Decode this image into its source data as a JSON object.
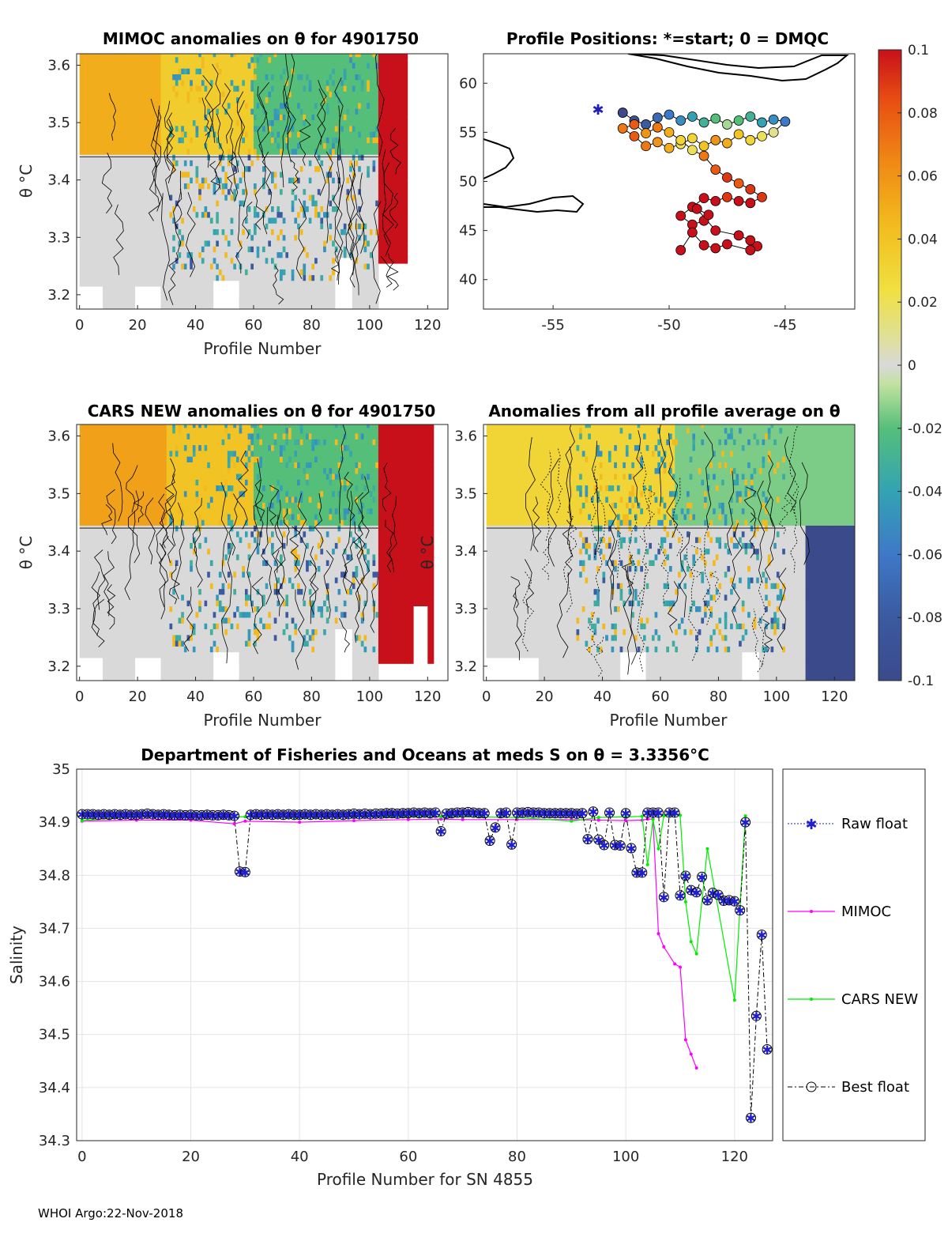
{
  "footer": "WHOI Argo:22-Nov-2018",
  "colorbar": {
    "ticks": [
      "0.1",
      "0.08",
      "0.06",
      "0.04",
      "0.02",
      "0",
      "-0.02",
      "-0.04",
      "-0.06",
      "-0.08",
      "-0.1"
    ],
    "range": [
      -0.1,
      0.1
    ]
  },
  "chart_data": [
    {
      "type": "heatmap",
      "title": "MIMOC anomalies on θ  for 4901750",
      "xlabel": "Profile Number",
      "ylabel": "θ °C",
      "xlim": [
        -1,
        127
      ],
      "ylim": [
        3.175,
        3.62
      ],
      "xticks": [
        "0",
        "20",
        "40",
        "60",
        "80",
        "100",
        "120"
      ],
      "yticks": [
        "3.2",
        "3.3",
        "3.4",
        "3.5",
        "3.6"
      ],
      "bands": [
        {
          "x": [
            0,
            28
          ],
          "theta": [
            3.44,
            3.62
          ],
          "value": 0.05
        },
        {
          "x": [
            28,
            60
          ],
          "theta": [
            3.44,
            3.62
          ],
          "value": 0.035
        },
        {
          "x": [
            60,
            103
          ],
          "theta": [
            3.44,
            3.62
          ],
          "value": -0.02
        },
        {
          "x": [
            0,
            103
          ],
          "theta": [
            3.175,
            3.44
          ],
          "value": 0.0
        },
        {
          "x": [
            103,
            113
          ],
          "theta": [
            3.25,
            3.62
          ],
          "value": 0.1
        }
      ]
    },
    {
      "type": "scatter",
      "title": "Profile Positions: *=start; 0 = DMQC",
      "xlabel": "",
      "ylabel": "",
      "xlim": [
        -58,
        -42
      ],
      "ylim": [
        37,
        63
      ],
      "xticks": [
        "-55",
        "-50",
        "-45"
      ],
      "yticks": [
        "40",
        "45",
        "50",
        "55",
        "60"
      ],
      "lon": [
        -52.0,
        -51.5,
        -51.0,
        -50.5,
        -50.0,
        -49.5,
        -49.0,
        -48.5,
        -48.0,
        -47.5,
        -47.0,
        -46.5,
        -46.0,
        -45.5,
        -45.0,
        -45.5,
        -46.0,
        -46.5,
        -47.0,
        -47.5,
        -48.0,
        -48.5,
        -49.0,
        -49.5,
        -50.0,
        -50.5,
        -51.0,
        -51.5,
        -52.0,
        -51.5,
        -51.0,
        -50.5,
        -50.0,
        -49.5,
        -49.0,
        -48.5,
        -48.0,
        -47.5,
        -47.0,
        -46.5,
        -46.0,
        -46.5,
        -47.0,
        -47.5,
        -48.0,
        -48.5,
        -49.0,
        -49.5,
        -49.0,
        -48.5,
        -48.3,
        -48.8,
        -48.0,
        -47.0,
        -46.5,
        -46.2,
        -46.5,
        -47.5,
        -48.0,
        -48.5,
        -49.0,
        -49.5
      ],
      "lat": [
        57.0,
        56.2,
        55.8,
        56.5,
        56.8,
        56.2,
        56.6,
        56.0,
        56.4,
        55.8,
        56.2,
        56.6,
        56.0,
        56.3,
        56.1,
        55.0,
        54.6,
        54.2,
        54.8,
        53.9,
        54.2,
        53.6,
        54.4,
        53.8,
        53.4,
        54.0,
        53.6,
        54.6,
        55.4,
        55.8,
        54.9,
        55.5,
        55.0,
        54.2,
        53.2,
        52.6,
        51.2,
        50.4,
        49.8,
        49.2,
        48.4,
        47.8,
        48.0,
        48.4,
        48.0,
        48.3,
        47.4,
        46.5,
        45.6,
        46.0,
        46.6,
        47.2,
        45.0,
        44.5,
        44.0,
        43.4,
        43.0,
        43.6,
        43.2,
        43.5,
        44.8,
        43.0
      ],
      "values": [
        -0.1,
        -0.09,
        -0.08,
        -0.07,
        -0.06,
        -0.05,
        -0.04,
        -0.03,
        -0.02,
        -0.01,
        -0.02,
        -0.03,
        -0.04,
        -0.05,
        -0.06,
        0.01,
        0.02,
        0.03,
        0.04,
        0.05,
        0.06,
        0.04,
        0.03,
        0.02,
        0.05,
        0.06,
        0.07,
        0.08,
        0.07,
        0.08,
        0.06,
        0.07,
        0.05,
        0.03,
        0.02,
        0.07,
        0.08,
        0.09,
        0.08,
        0.09,
        0.09,
        0.1,
        0.1,
        0.09,
        0.1,
        0.1,
        0.1,
        0.1,
        0.1,
        0.1,
        0.1,
        0.1,
        0.1,
        0.1,
        0.1,
        0.1,
        0.1,
        0.1,
        0.1,
        0.1,
        0.1,
        0.1
      ]
    },
    {
      "type": "heatmap",
      "title": "CARS NEW anomalies on θ for 4901750",
      "xlabel": "Profile Number",
      "ylabel": "θ °C",
      "xlim": [
        -1,
        127
      ],
      "ylim": [
        3.175,
        3.62
      ],
      "xticks": [
        "0",
        "20",
        "40",
        "60",
        "80",
        "100",
        "120"
      ],
      "yticks": [
        "3.2",
        "3.3",
        "3.4",
        "3.5",
        "3.6"
      ],
      "bands": [
        {
          "x": [
            0,
            30
          ],
          "theta": [
            3.44,
            3.62
          ],
          "value": 0.055
        },
        {
          "x": [
            30,
            60
          ],
          "theta": [
            3.44,
            3.62
          ],
          "value": 0.04
        },
        {
          "x": [
            60,
            103
          ],
          "theta": [
            3.44,
            3.62
          ],
          "value": -0.02
        },
        {
          "x": [
            0,
            103
          ],
          "theta": [
            3.175,
            3.44
          ],
          "value": 0.0
        },
        {
          "x": [
            103,
            122
          ],
          "theta": [
            3.2,
            3.62
          ],
          "value": 0.1
        }
      ]
    },
    {
      "type": "heatmap",
      "title": "Anomalies from all profile average on θ",
      "xlabel": "Profile Number",
      "ylabel": "θ °C",
      "xlim": [
        -1,
        127
      ],
      "ylim": [
        3.175,
        3.62
      ],
      "xticks": [
        "0",
        "20",
        "40",
        "60",
        "80",
        "100",
        "120"
      ],
      "yticks": [
        "3.2",
        "3.3",
        "3.4",
        "3.5",
        "3.6"
      ],
      "bands": [
        {
          "x": [
            0,
            65
          ],
          "theta": [
            3.44,
            3.62
          ],
          "value": 0.03
        },
        {
          "x": [
            65,
            127
          ],
          "theta": [
            3.44,
            3.62
          ],
          "value": -0.015
        },
        {
          "x": [
            0,
            110
          ],
          "theta": [
            3.175,
            3.44
          ],
          "value": 0.0
        },
        {
          "x": [
            110,
            127
          ],
          "theta": [
            3.175,
            3.44
          ],
          "value": -0.1
        }
      ]
    },
    {
      "type": "line",
      "title": "Department of Fisheries and Oceans at meds S on θ = 3.3356°C",
      "xlabel": "Profile Number for SN 4855",
      "ylabel": "Salinity",
      "xlim": [
        -1,
        127
      ],
      "ylim": [
        34.3,
        35
      ],
      "xticks": [
        "0",
        "20",
        "40",
        "60",
        "80",
        "100",
        "120"
      ],
      "yticks": [
        "34.3",
        "34.4",
        "34.5",
        "34.6",
        "34.7",
        "34.8",
        "34.9",
        "35"
      ],
      "legend": [
        "Raw float",
        "MIMOC",
        "CARS NEW",
        "Best float"
      ],
      "series": [
        {
          "name": "Raw float / Best float",
          "x": [
            0,
            1,
            2,
            3,
            4,
            5,
            6,
            7,
            8,
            9,
            10,
            11,
            12,
            13,
            14,
            15,
            16,
            17,
            18,
            19,
            20,
            21,
            22,
            23,
            24,
            25,
            26,
            27,
            28,
            29,
            30,
            31,
            32,
            33,
            34,
            35,
            36,
            37,
            38,
            39,
            40,
            41,
            42,
            43,
            44,
            45,
            46,
            47,
            48,
            49,
            50,
            51,
            52,
            53,
            54,
            55,
            56,
            57,
            58,
            59,
            60,
            61,
            62,
            63,
            64,
            65,
            66,
            67,
            68,
            69,
            70,
            71,
            72,
            73,
            74,
            75,
            76,
            77,
            78,
            79,
            80,
            81,
            82,
            83,
            84,
            85,
            86,
            87,
            88,
            89,
            90,
            91,
            92,
            93,
            94,
            95,
            96,
            97,
            98,
            99,
            100,
            101,
            102,
            103,
            104,
            105,
            106,
            107,
            108,
            109,
            110,
            111,
            112,
            113,
            114,
            115,
            116,
            117,
            118,
            119,
            120,
            121,
            122,
            123,
            124,
            125,
            126
          ],
          "y": [
            34.915,
            34.915,
            34.915,
            34.914,
            34.915,
            34.914,
            34.915,
            34.914,
            34.915,
            34.914,
            34.914,
            34.915,
            34.916,
            34.915,
            34.914,
            34.915,
            34.914,
            34.913,
            34.914,
            34.913,
            34.914,
            34.913,
            34.913,
            34.914,
            34.913,
            34.913,
            34.914,
            34.913,
            34.912,
            34.807,
            34.806,
            34.914,
            34.915,
            34.914,
            34.915,
            34.914,
            34.915,
            34.914,
            34.915,
            34.914,
            34.914,
            34.915,
            34.914,
            34.915,
            34.914,
            34.915,
            34.914,
            34.915,
            34.914,
            34.915,
            34.916,
            34.915,
            34.916,
            34.915,
            34.916,
            34.916,
            34.917,
            34.917,
            34.916,
            34.917,
            34.917,
            34.918,
            34.917,
            34.918,
            34.917,
            34.918,
            34.883,
            34.916,
            34.917,
            34.918,
            34.918,
            34.919,
            34.918,
            34.917,
            34.917,
            34.865,
            34.89,
            34.917,
            34.918,
            34.858,
            34.918,
            34.918,
            34.919,
            34.918,
            34.918,
            34.917,
            34.917,
            34.917,
            34.917,
            34.917,
            34.917,
            34.916,
            34.917,
            34.868,
            34.92,
            34.867,
            34.857,
            34.918,
            34.857,
            34.856,
            34.917,
            34.851,
            34.805,
            34.805,
            34.918,
            34.918,
            34.918,
            34.759,
            34.918,
            34.918,
            34.762,
            34.799,
            34.772,
            34.768,
            34.797,
            34.753,
            34.767,
            34.763,
            34.752,
            34.753,
            34.751,
            34.734,
            34.9,
            34.343,
            34.535,
            34.688,
            34.472
          ]
        },
        {
          "name": "MIMOC",
          "x": [
            0,
            10,
            20,
            28,
            30,
            40,
            50,
            60,
            66,
            70,
            80,
            90,
            95,
            100,
            103,
            104,
            105,
            106,
            107,
            109,
            110,
            111,
            112,
            113
          ],
          "y": [
            34.902,
            34.904,
            34.904,
            34.897,
            34.902,
            34.9,
            34.903,
            34.905,
            34.906,
            34.905,
            34.905,
            34.905,
            34.904,
            34.903,
            34.904,
            34.906,
            34.906,
            34.69,
            34.665,
            34.633,
            34.627,
            34.49,
            34.463,
            34.437
          ]
        },
        {
          "name": "CARS NEW",
          "x": [
            0,
            10,
            20,
            30,
            40,
            50,
            60,
            66,
            70,
            80,
            90,
            95,
            100,
            103,
            104,
            105,
            106,
            107,
            108,
            109,
            110,
            111,
            112,
            113,
            115,
            120,
            122
          ],
          "y": [
            34.903,
            34.911,
            34.91,
            34.91,
            34.909,
            34.91,
            34.91,
            34.91,
            34.91,
            34.909,
            34.902,
            34.909,
            34.91,
            34.911,
            34.82,
            34.905,
            34.85,
            34.912,
            34.913,
            34.914,
            34.913,
            34.75,
            34.675,
            34.652,
            34.85,
            34.565,
            34.912
          ]
        }
      ]
    }
  ]
}
